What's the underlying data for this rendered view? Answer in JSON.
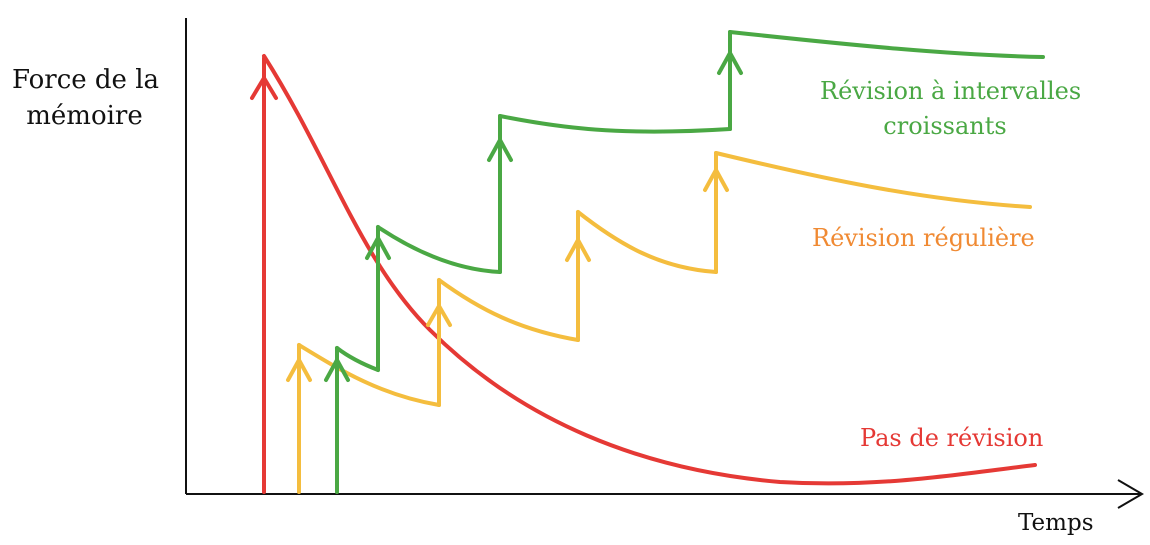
{
  "y_axis_label_line1": "Force de la",
  "y_axis_label_line2": "mémoire",
  "x_axis_label": "Temps",
  "curves": [
    {
      "label_line1": "Révision à intervalles",
      "label_line2": "croissants",
      "color": "#4aa844"
    },
    {
      "label_line1": "Révision régulière",
      "color": "#f4bd3e",
      "label_color": "#f08a33"
    },
    {
      "label_line1": "Pas de révision",
      "color": "#e53935"
    }
  ]
}
